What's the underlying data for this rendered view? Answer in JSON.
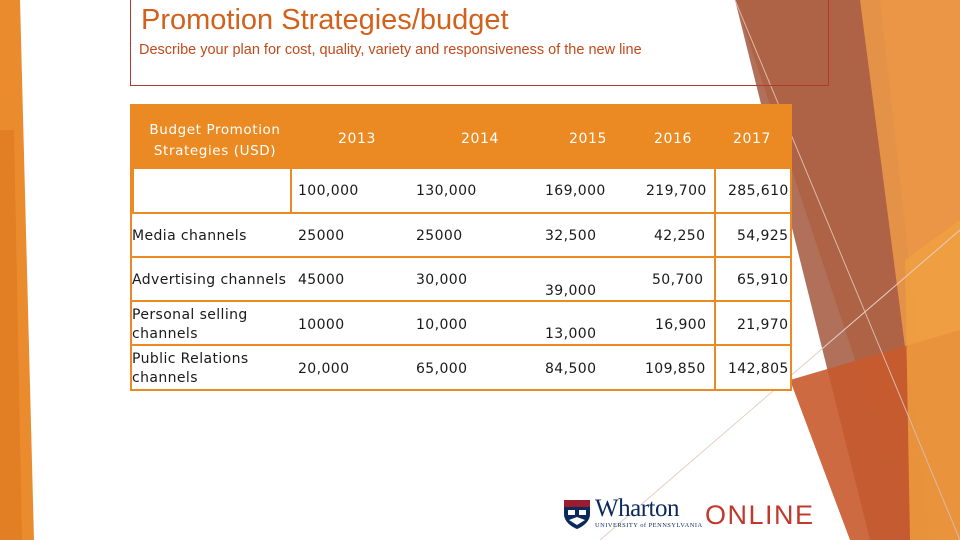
{
  "slide": {
    "title": "Promotion Strategies/budget",
    "subtitle": "Describe your plan for cost, quality, variety and responsiveness of the new line"
  },
  "table": {
    "header": [
      "Budget Promotion Strategies (USD)",
      "2013",
      "2014",
      "2015",
      "2016",
      "2017"
    ],
    "rows": [
      {
        "label": "",
        "values": [
          "100,000",
          "130,000",
          "169,000",
          "219,700",
          "285,610"
        ]
      },
      {
        "label": "Media channels",
        "values": [
          "25000",
          "25000",
          "32,500",
          "42,250",
          "54,925"
        ]
      },
      {
        "label": "Advertising channels",
        "values": [
          "45000",
          "30,000",
          "39,000",
          "50,700",
          "65,910"
        ]
      },
      {
        "label": "Personal selling channels",
        "values": [
          "10000",
          "10,000",
          "13,000",
          "16,900",
          "21,970"
        ]
      },
      {
        "label": "Public Relations channels",
        "values": [
          "20,000",
          "65,000",
          "84,500",
          "109,850",
          "142,805"
        ]
      }
    ]
  },
  "logo": {
    "name": "Wharton",
    "tagline": "UNIVERSITY of PENNSYLVANIA",
    "online": "ONLINE"
  },
  "colors": {
    "accent": "#eb8a22",
    "title": "#d2611c",
    "brand_navy": "#0b2a5b",
    "brand_red": "#c0392b"
  }
}
